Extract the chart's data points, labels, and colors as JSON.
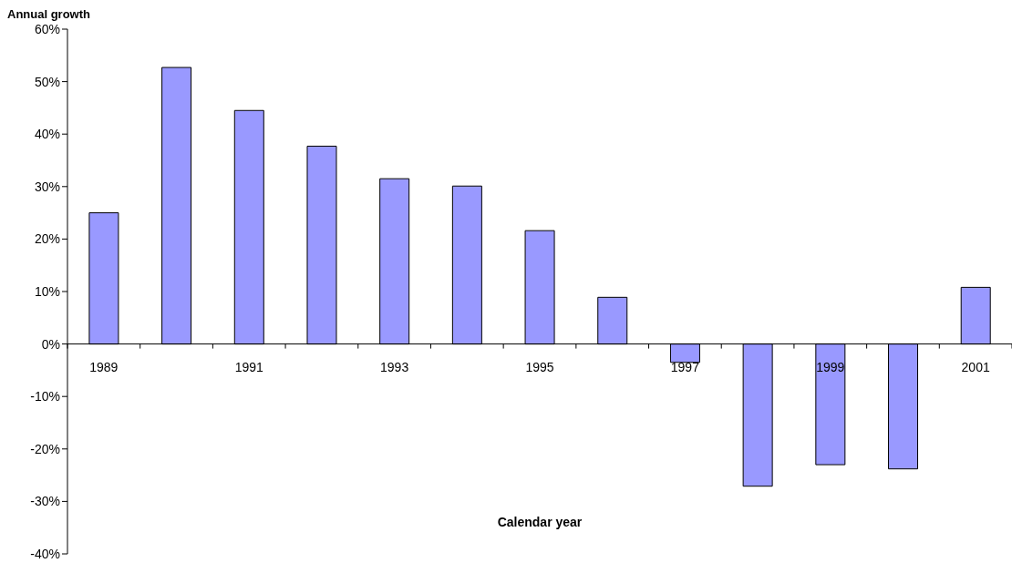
{
  "chart_data": {
    "type": "bar",
    "ylabel": "Annual growth",
    "xlabel": "Calendar year",
    "categories": [
      "1989",
      null,
      "1991",
      null,
      "1993",
      null,
      "1995",
      null,
      "1997",
      null,
      "1999",
      null,
      "2001"
    ],
    "values": [
      25,
      52.7,
      44.5,
      37.7,
      31.5,
      30.1,
      21.6,
      8.9,
      -3.5,
      -27.1,
      -23.0,
      -23.8,
      10.8
    ],
    "color": "#9999ff",
    "ylim": [
      -40,
      60
    ],
    "yticks": [
      {
        "value": -40,
        "label": "-40%"
      },
      {
        "value": -30,
        "label": "-30%"
      },
      {
        "value": -20,
        "label": "-20%"
      },
      {
        "value": -10,
        "label": "-10%"
      },
      {
        "value": 0,
        "label": "0%"
      },
      {
        "value": 10,
        "label": "10%"
      },
      {
        "value": 20,
        "label": "20%"
      },
      {
        "value": 30,
        "label": "30%"
      },
      {
        "value": 40,
        "label": "40%"
      },
      {
        "value": 50,
        "label": "50%"
      },
      {
        "value": 60,
        "label": "60%"
      }
    ],
    "grid": false,
    "legend": false
  }
}
